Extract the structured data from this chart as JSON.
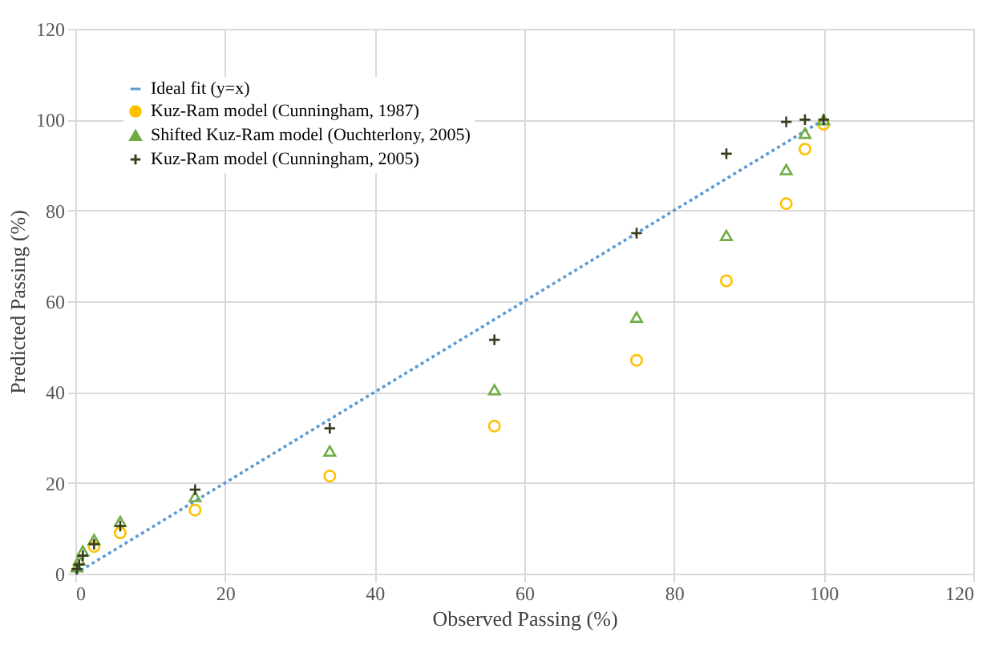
{
  "chart_data": {
    "type": "scatter",
    "xlabel": "Observed Passing (%)",
    "ylabel": "Predicted Passing (%)",
    "xlim": [
      0,
      120
    ],
    "xticks": [
      0,
      20,
      40,
      60,
      80,
      100,
      120
    ],
    "ylim": [
      0,
      120
    ],
    "yticks": [
      0,
      20,
      40,
      60,
      80,
      100,
      120
    ],
    "grid": true,
    "legend": "top left",
    "series": [
      {
        "name": "Ideal fit (y=x)",
        "type": "line",
        "line_style": "dotted",
        "marker": "none",
        "color": "#5b9bd5",
        "x": [
          0,
          100
        ],
        "values": [
          0,
          100
        ]
      },
      {
        "name": "Kuz-Ram model (Cunningham, 1987)",
        "type": "scatter",
        "marker": "circle",
        "color": "#ffc000",
        "x": [
          2.5,
          6,
          16,
          34,
          56,
          75,
          87,
          95,
          97.5,
          100
        ],
        "values": [
          6,
          9,
          14,
          21.5,
          32.5,
          47,
          64.5,
          81.5,
          93.5,
          99
        ]
      },
      {
        "name": "Shifted Kuz-Ram model (Ouchterlony, 2005)",
        "type": "scatter",
        "marker": "triangle",
        "color": "#70ad47",
        "x": [
          0.2,
          0.5,
          1,
          2.5,
          6,
          16,
          34,
          56,
          75,
          87,
          95,
          97.5,
          100
        ],
        "values": [
          1.5,
          3,
          5,
          7.5,
          11.5,
          17,
          27,
          40.5,
          56.5,
          74.5,
          89,
          97,
          100
        ]
      },
      {
        "name": "Kuz-Ram model (Cunningham, 2005)",
        "type": "scatter",
        "marker": "cross",
        "color": "#3b3b1e",
        "x": [
          0.2,
          0.5,
          1,
          2.5,
          6,
          16,
          34,
          56,
          75,
          87,
          95,
          97.5,
          100
        ],
        "values": [
          1,
          2,
          4,
          6.5,
          10.5,
          18.5,
          32,
          51.5,
          75,
          92.5,
          99.5,
          100,
          100
        ]
      }
    ]
  }
}
